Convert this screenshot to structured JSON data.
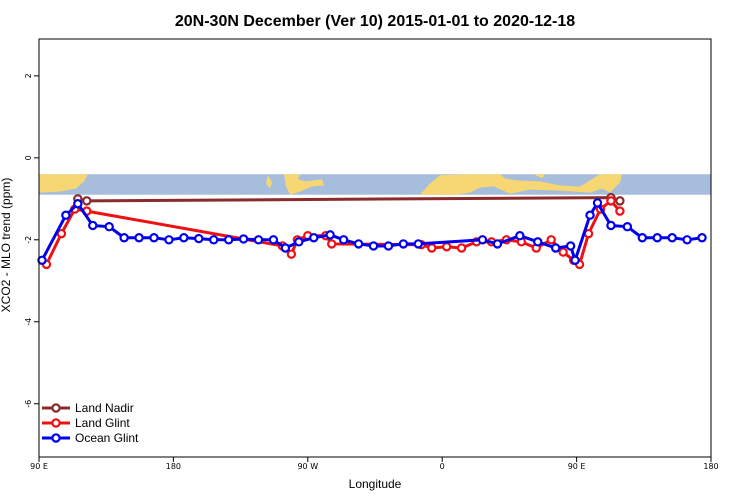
{
  "chart_data": {
    "type": "line",
    "title": "20N-30N December (Ver 10)   2015-01-01 to 2020-12-18",
    "xlabel": "Longitude",
    "ylabel": "XCO2 - MLO trend (ppm)",
    "xlim": [
      90,
      540
    ],
    "ylim": [
      -7.3,
      2.9
    ],
    "x_ticks": [
      {
        "value": 90,
        "label": "90 E"
      },
      {
        "value": 180,
        "label": "180"
      },
      {
        "value": 270,
        "label": "90 W"
      },
      {
        "value": 360,
        "label": "0"
      },
      {
        "value": 450,
        "label": "90 E"
      },
      {
        "value": 540,
        "label": "180"
      }
    ],
    "y_ticks": [
      {
        "value": 2,
        "label": "2"
      },
      {
        "value": 0,
        "label": "0"
      },
      {
        "value": -2,
        "label": "-2"
      },
      {
        "value": -4,
        "label": "-4"
      },
      {
        "value": -6,
        "label": "-6"
      }
    ],
    "grid": false,
    "legend_position": "bottom-left",
    "map_band": {
      "y_top": -0.4,
      "y_bottom": -0.9,
      "ocean_color": "#a6bedc",
      "land_color": "#f7d674"
    },
    "series": [
      {
        "name": "Land Nadir",
        "color": "#8b2b2b",
        "x": [
          116,
          122,
          473,
          479
        ],
        "y": [
          -1.0,
          -1.05,
          -0.97,
          -1.05
        ]
      },
      {
        "name": "Land Glint",
        "color": "#ee1111",
        "x": [
          95,
          105,
          114,
          122,
          253,
          259,
          263,
          270,
          282,
          286,
          346,
          353,
          363,
          373,
          383,
          393,
          403,
          413,
          423,
          433,
          441,
          448,
          452,
          458,
          466,
          473,
          479
        ],
        "y": [
          -2.6,
          -1.85,
          -1.25,
          -1.3,
          -2.15,
          -2.35,
          -2.0,
          -1.9,
          -1.9,
          -2.1,
          -2.12,
          -2.2,
          -2.17,
          -2.2,
          -2.05,
          -2.05,
          -2.0,
          -2.05,
          -2.2,
          -2.0,
          -2.3,
          -2.5,
          -2.6,
          -1.85,
          -1.25,
          -1.05,
          -1.3
        ]
      },
      {
        "name": "Ocean Glint",
        "color": "#0000ee",
        "x": [
          92,
          108,
          116,
          126,
          137,
          147,
          157,
          167,
          177,
          187,
          197,
          207,
          217,
          227,
          237,
          247,
          255,
          264,
          274,
          285,
          294,
          304,
          314,
          324,
          334,
          344,
          387,
          397,
          412,
          424,
          436,
          446,
          449,
          459,
          464,
          473,
          484,
          494,
          504,
          514,
          524,
          534
        ],
        "y": [
          -2.5,
          -1.4,
          -1.12,
          -1.65,
          -1.68,
          -1.95,
          -1.95,
          -1.95,
          -2.0,
          -1.95,
          -1.97,
          -2.0,
          -2.0,
          -1.98,
          -2.0,
          -2.0,
          -2.2,
          -2.05,
          -1.95,
          -1.88,
          -2.0,
          -2.1,
          -2.15,
          -2.15,
          -2.1,
          -2.1,
          -2.0,
          -2.1,
          -1.9,
          -2.05,
          -2.2,
          -2.15,
          -2.5,
          -1.4,
          -1.1,
          -1.65,
          -1.68,
          -1.95,
          -1.95,
          -1.95,
          -2.0,
          -1.95
        ]
      }
    ]
  }
}
